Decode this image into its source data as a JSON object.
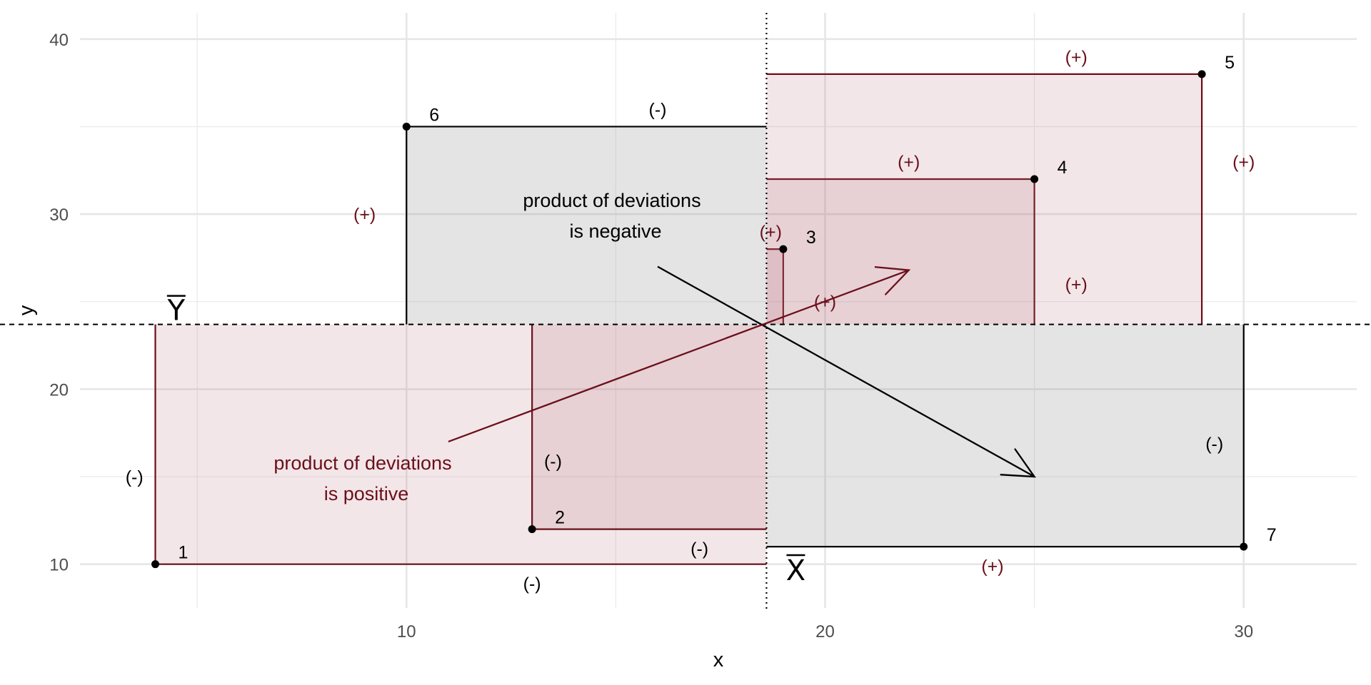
{
  "chart_data": {
    "type": "scatter",
    "xlabel": "x",
    "ylabel": "y",
    "xlim": [
      2.2,
      32.7
    ],
    "ylim": [
      7.5,
      41.5
    ],
    "x_ticks": [
      10,
      20,
      30
    ],
    "y_ticks": [
      10,
      20,
      30,
      40
    ],
    "x_minor": [
      5,
      15,
      25
    ],
    "y_minor": [
      15,
      25,
      35
    ],
    "grid": true,
    "x_mean": 18.6,
    "y_mean": 23.7,
    "x_mean_label": "X",
    "y_mean_label": "Y",
    "points": [
      {
        "label": "1",
        "x": 4,
        "y": 10
      },
      {
        "label": "2",
        "x": 13,
        "y": 12
      },
      {
        "label": "3",
        "x": 19,
        "y": 28
      },
      {
        "label": "4",
        "x": 25,
        "y": 32
      },
      {
        "label": "5",
        "x": 29,
        "y": 38
      },
      {
        "label": "6",
        "x": 10,
        "y": 35
      },
      {
        "label": "7",
        "x": 30,
        "y": 11
      }
    ],
    "sign_labels": [
      {
        "text": "(-)",
        "x": 3.5,
        "y": 15,
        "kind": "neg"
      },
      {
        "text": "(-)",
        "x": 13,
        "y": 8.9,
        "kind": "neg"
      },
      {
        "text": "(-)",
        "x": 13.5,
        "y": 15.9,
        "kind": "neg"
      },
      {
        "text": "(-)",
        "x": 17,
        "y": 10.9,
        "kind": "neg"
      },
      {
        "text": "(+)",
        "x": 9,
        "y": 30,
        "kind": "pos"
      },
      {
        "text": "(-)",
        "x": 16,
        "y": 36,
        "kind": "neg"
      },
      {
        "text": "(+)",
        "x": 18.7,
        "y": 29,
        "kind": "pos"
      },
      {
        "text": "(+)",
        "x": 20,
        "y": 25,
        "kind": "pos"
      },
      {
        "text": "(+)",
        "x": 22,
        "y": 33,
        "kind": "pos"
      },
      {
        "text": "(+)",
        "x": 26,
        "y": 26,
        "kind": "pos"
      },
      {
        "text": "(+)",
        "x": 26,
        "y": 39,
        "kind": "pos"
      },
      {
        "text": "(+)",
        "x": 30,
        "y": 33,
        "kind": "pos"
      },
      {
        "text": "(-)",
        "x": 29.3,
        "y": 16.9,
        "kind": "neg"
      },
      {
        "text": "(+)",
        "x": 24,
        "y": 9.9,
        "kind": "pos"
      }
    ],
    "annotations": {
      "negative": {
        "line1": "product of deviations",
        "line2": "is negative"
      },
      "positive": {
        "line1": "product of deviations",
        "line2": "is positive"
      }
    },
    "colors": {
      "positive": "#6b0f1a",
      "negative": "#000000",
      "positive_fill": "#edd8db",
      "negative_fill": "#dadada",
      "grid": "#e6e6e6"
    }
  }
}
